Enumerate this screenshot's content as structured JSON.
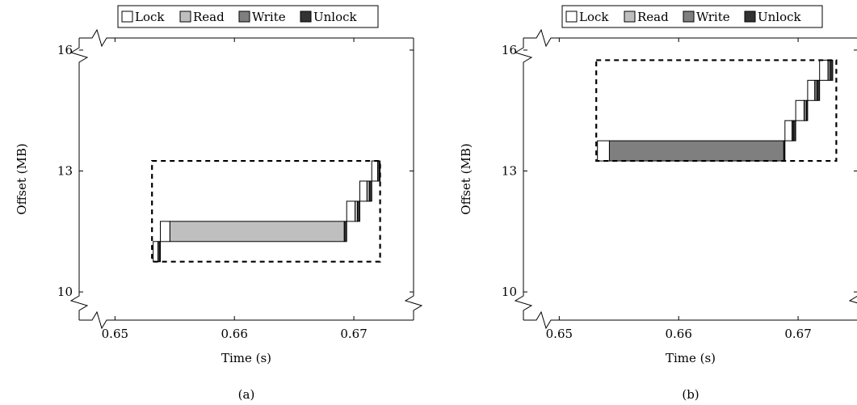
{
  "chart_data": [
    {
      "type": "bar",
      "caption": "(a)",
      "xlabel": "Time (s)",
      "ylabel": "Offset (MB)",
      "xlim": [
        0.647,
        0.675
      ],
      "ylim": [
        9.3,
        16.3
      ],
      "x_ticks": [
        0.65,
        0.66,
        0.67
      ],
      "x_tick_labels": [
        "0.65",
        "0.66",
        "0.67"
      ],
      "y_ticks": [
        10,
        13,
        16
      ],
      "y_tick_labels": [
        "10",
        "13",
        "16"
      ],
      "legend": [
        "Lock",
        "Read",
        "Write",
        "Unlock"
      ],
      "legend_position": "top-center",
      "axis_breaks": true,
      "colors": {
        "Lock": "#ffffff",
        "Read": "#bfbfbf",
        "Write": "#7f7f7f",
        "Unlock": "#333333"
      },
      "highlight_box": {
        "x": [
          0.6531,
          0.6722
        ],
        "y": [
          10.75,
          13.25
        ]
      },
      "operations": [
        {
          "offset": [
            10.75,
            11.25
          ],
          "lock": [
            0.6532,
            0.6536
          ],
          "read": [
            0.6536,
            0.6537
          ],
          "unlock": [
            0.6537,
            0.6538
          ]
        },
        {
          "offset": [
            11.25,
            11.75
          ],
          "lock": [
            0.6538,
            0.6546
          ],
          "read": [
            0.6546,
            0.6692
          ],
          "unlock": [
            0.6692,
            0.6694
          ]
        },
        {
          "offset": [
            11.75,
            12.25
          ],
          "lock": [
            0.6694,
            0.6701
          ],
          "read": [
            0.6701,
            0.6703
          ],
          "unlock": [
            0.6703,
            0.6705
          ]
        },
        {
          "offset": [
            12.25,
            12.75
          ],
          "lock": [
            0.6705,
            0.6711
          ],
          "read": [
            0.6711,
            0.6713
          ],
          "unlock": [
            0.6713,
            0.6715
          ]
        },
        {
          "offset": [
            12.75,
            13.25
          ],
          "lock": [
            0.6715,
            0.672
          ],
          "read": [
            0.672,
            0.6721
          ],
          "unlock": [
            0.6721,
            0.6722
          ]
        }
      ]
    },
    {
      "type": "bar",
      "caption": "(b)",
      "xlabel": "Time (s)",
      "ylabel": "Offset (MB)",
      "xlim": [
        0.647,
        0.675
      ],
      "ylim": [
        9.3,
        16.3
      ],
      "x_ticks": [
        0.65,
        0.66,
        0.67
      ],
      "x_tick_labels": [
        "0.65",
        "0.66",
        "0.67"
      ],
      "y_ticks": [
        10,
        13,
        16
      ],
      "y_tick_labels": [
        "10",
        "13",
        "16"
      ],
      "legend": [
        "Lock",
        "Read",
        "Write",
        "Unlock"
      ],
      "legend_position": "top-center",
      "axis_breaks": true,
      "colors": {
        "Lock": "#ffffff",
        "Read": "#bfbfbf",
        "Write": "#7f7f7f",
        "Unlock": "#333333"
      },
      "highlight_box": {
        "x": [
          0.6531,
          0.6732
        ],
        "y": [
          13.25,
          15.75
        ]
      },
      "operations": [
        {
          "offset": [
            13.25,
            13.75
          ],
          "lock": [
            0.6532,
            0.6542
          ],
          "write": [
            0.6542,
            0.6688
          ],
          "unlock": [
            0.6688,
            0.6689
          ]
        },
        {
          "offset": [
            13.75,
            14.25
          ],
          "lock": [
            0.6689,
            0.6695
          ],
          "write": [
            0.6695,
            0.6696
          ],
          "unlock": [
            0.6696,
            0.6698
          ]
        },
        {
          "offset": [
            14.25,
            14.75
          ],
          "lock": [
            0.6698,
            0.6705
          ],
          "write": [
            0.6705,
            0.6707
          ],
          "unlock": [
            0.6707,
            0.6708
          ]
        },
        {
          "offset": [
            14.75,
            15.25
          ],
          "lock": [
            0.6708,
            0.6714
          ],
          "write": [
            0.6714,
            0.6716
          ],
          "unlock": [
            0.6716,
            0.6718
          ]
        },
        {
          "offset": [
            15.25,
            15.75
          ],
          "lock": [
            0.6718,
            0.6725
          ],
          "write": [
            0.6725,
            0.6727
          ],
          "unlock": [
            0.6727,
            0.6729
          ]
        }
      ]
    }
  ]
}
